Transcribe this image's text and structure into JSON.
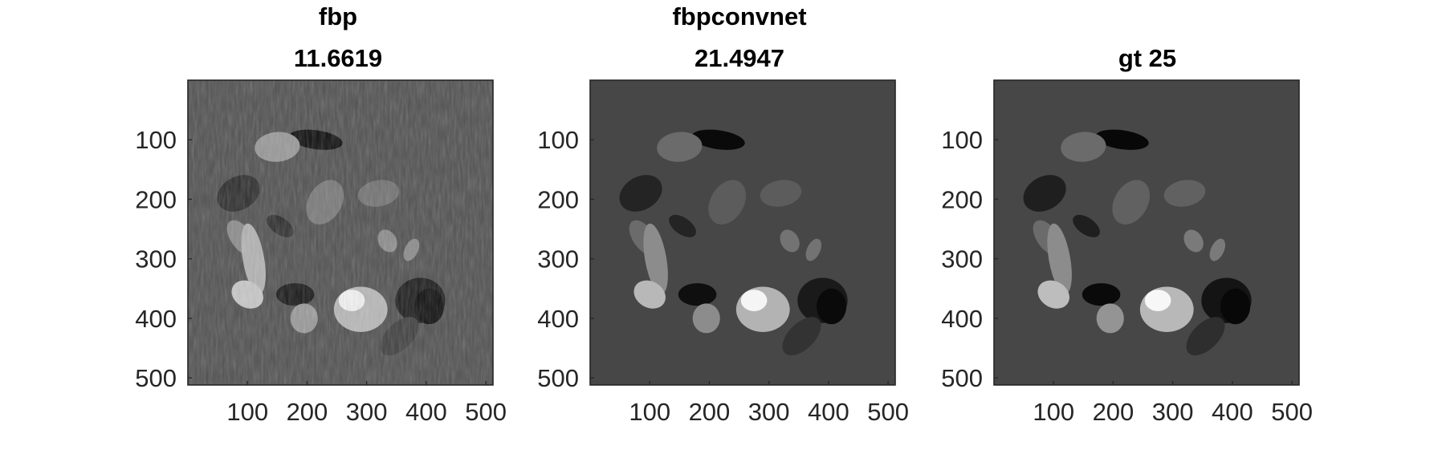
{
  "figure": {
    "background_color": "#ffffff",
    "axis_color": "#262626",
    "title_color": "#000000"
  },
  "chart_data": [
    {
      "type": "heatmap",
      "image_type": "grayscale reconstruction",
      "title": "fbp",
      "subtitle": "11.6619",
      "xlabel": "",
      "ylabel": "",
      "xlim": [
        0,
        512
      ],
      "ylim": [
        512,
        0
      ],
      "xticks": [
        100,
        200,
        300,
        400,
        500
      ],
      "yticks": [
        100,
        200,
        300,
        400,
        500
      ],
      "background_gray": 0.32,
      "noise": "streak artifacts",
      "ellipses": [
        {
          "cx": 215,
          "cy": 100,
          "rx": 45,
          "ry": 16,
          "angle": 8,
          "gray": 0.06
        },
        {
          "cx": 150,
          "cy": 112,
          "rx": 38,
          "ry": 25,
          "angle": -5,
          "gray": 0.6
        },
        {
          "cx": 85,
          "cy": 190,
          "rx": 38,
          "ry": 28,
          "angle": -30,
          "gray": 0.18
        },
        {
          "cx": 230,
          "cy": 205,
          "rx": 40,
          "ry": 28,
          "angle": -60,
          "gray": 0.48
        },
        {
          "cx": 320,
          "cy": 190,
          "rx": 35,
          "ry": 22,
          "angle": -10,
          "gray": 0.45
        },
        {
          "cx": 155,
          "cy": 245,
          "rx": 26,
          "ry": 14,
          "angle": 35,
          "gray": 0.18
        },
        {
          "cx": 90,
          "cy": 265,
          "rx": 34,
          "ry": 18,
          "angle": 55,
          "gray": 0.55
        },
        {
          "cx": 110,
          "cy": 300,
          "rx": 60,
          "ry": 18,
          "angle": 80,
          "gray": 0.7
        },
        {
          "cx": 335,
          "cy": 270,
          "rx": 20,
          "ry": 15,
          "angle": 60,
          "gray": 0.55
        },
        {
          "cx": 375,
          "cy": 285,
          "rx": 20,
          "ry": 11,
          "angle": -65,
          "gray": 0.55
        },
        {
          "cx": 100,
          "cy": 360,
          "rx": 28,
          "ry": 22,
          "angle": 30,
          "gray": 0.78
        },
        {
          "cx": 180,
          "cy": 360,
          "rx": 32,
          "ry": 19,
          "angle": 0,
          "gray": 0.1
        },
        {
          "cx": 290,
          "cy": 385,
          "rx": 45,
          "ry": 38,
          "angle": 0,
          "gray": 0.72
        },
        {
          "cx": 275,
          "cy": 370,
          "rx": 22,
          "ry": 18,
          "angle": 0,
          "gray": 0.95
        },
        {
          "cx": 195,
          "cy": 400,
          "rx": 23,
          "ry": 25,
          "angle": 0,
          "gray": 0.6
        },
        {
          "cx": 390,
          "cy": 370,
          "rx": 42,
          "ry": 38,
          "angle": 0,
          "gray": 0.12
        },
        {
          "cx": 405,
          "cy": 380,
          "rx": 25,
          "ry": 30,
          "angle": 0,
          "gray": 0.06
        },
        {
          "cx": 355,
          "cy": 430,
          "rx": 40,
          "ry": 22,
          "angle": -45,
          "gray": 0.25
        }
      ]
    },
    {
      "type": "heatmap",
      "image_type": "grayscale reconstruction",
      "title": "fbpconvnet",
      "subtitle": "21.4947",
      "xlabel": "",
      "ylabel": "",
      "xlim": [
        0,
        512
      ],
      "ylim": [
        512,
        0
      ],
      "xticks": [
        100,
        200,
        300,
        400,
        500
      ],
      "yticks": [
        100,
        200,
        300,
        400,
        500
      ],
      "background_gray": 0.28,
      "noise": "none",
      "ellipses": [
        {
          "cx": 215,
          "cy": 100,
          "rx": 45,
          "ry": 16,
          "angle": 8,
          "gray": 0.04
        },
        {
          "cx": 150,
          "cy": 112,
          "rx": 38,
          "ry": 25,
          "angle": -5,
          "gray": 0.42
        },
        {
          "cx": 85,
          "cy": 190,
          "rx": 38,
          "ry": 28,
          "angle": -30,
          "gray": 0.14
        },
        {
          "cx": 230,
          "cy": 205,
          "rx": 40,
          "ry": 28,
          "angle": -60,
          "gray": 0.36
        },
        {
          "cx": 320,
          "cy": 190,
          "rx": 35,
          "ry": 22,
          "angle": -10,
          "gray": 0.36
        },
        {
          "cx": 155,
          "cy": 245,
          "rx": 26,
          "ry": 14,
          "angle": 35,
          "gray": 0.14
        },
        {
          "cx": 90,
          "cy": 265,
          "rx": 34,
          "ry": 18,
          "angle": 55,
          "gray": 0.42
        },
        {
          "cx": 110,
          "cy": 300,
          "rx": 60,
          "ry": 18,
          "angle": 80,
          "gray": 0.55
        },
        {
          "cx": 335,
          "cy": 270,
          "rx": 20,
          "ry": 15,
          "angle": 60,
          "gray": 0.45
        },
        {
          "cx": 375,
          "cy": 285,
          "rx": 20,
          "ry": 11,
          "angle": -65,
          "gray": 0.45
        },
        {
          "cx": 100,
          "cy": 360,
          "rx": 28,
          "ry": 22,
          "angle": 30,
          "gray": 0.72
        },
        {
          "cx": 180,
          "cy": 360,
          "rx": 32,
          "ry": 19,
          "angle": 0,
          "gray": 0.06
        },
        {
          "cx": 290,
          "cy": 385,
          "rx": 45,
          "ry": 38,
          "angle": 0,
          "gray": 0.7
        },
        {
          "cx": 275,
          "cy": 370,
          "rx": 22,
          "ry": 18,
          "angle": 0,
          "gray": 0.96
        },
        {
          "cx": 195,
          "cy": 400,
          "rx": 23,
          "ry": 25,
          "angle": 0,
          "gray": 0.55
        },
        {
          "cx": 390,
          "cy": 370,
          "rx": 42,
          "ry": 38,
          "angle": 0,
          "gray": 0.1
        },
        {
          "cx": 405,
          "cy": 380,
          "rx": 25,
          "ry": 30,
          "angle": 0,
          "gray": 0.04
        },
        {
          "cx": 355,
          "cy": 430,
          "rx": 40,
          "ry": 22,
          "angle": -45,
          "gray": 0.2
        }
      ]
    },
    {
      "type": "heatmap",
      "image_type": "grayscale reconstruction",
      "title": "gt 25",
      "subtitle": "",
      "xlabel": "",
      "ylabel": "",
      "xlim": [
        0,
        512
      ],
      "ylim": [
        512,
        0
      ],
      "xticks": [
        100,
        200,
        300,
        400,
        500
      ],
      "yticks": [
        100,
        200,
        300,
        400,
        500
      ],
      "background_gray": 0.28,
      "noise": "none",
      "ellipses": [
        {
          "cx": 215,
          "cy": 100,
          "rx": 45,
          "ry": 16,
          "angle": 8,
          "gray": 0.03
        },
        {
          "cx": 150,
          "cy": 112,
          "rx": 38,
          "ry": 25,
          "angle": -5,
          "gray": 0.42
        },
        {
          "cx": 85,
          "cy": 190,
          "rx": 38,
          "ry": 28,
          "angle": -30,
          "gray": 0.12
        },
        {
          "cx": 230,
          "cy": 205,
          "rx": 40,
          "ry": 28,
          "angle": -60,
          "gray": 0.38
        },
        {
          "cx": 320,
          "cy": 190,
          "rx": 35,
          "ry": 22,
          "angle": -10,
          "gray": 0.38
        },
        {
          "cx": 155,
          "cy": 245,
          "rx": 26,
          "ry": 14,
          "angle": 35,
          "gray": 0.12
        },
        {
          "cx": 90,
          "cy": 265,
          "rx": 34,
          "ry": 18,
          "angle": 55,
          "gray": 0.42
        },
        {
          "cx": 110,
          "cy": 300,
          "rx": 60,
          "ry": 18,
          "angle": 80,
          "gray": 0.55
        },
        {
          "cx": 335,
          "cy": 270,
          "rx": 20,
          "ry": 15,
          "angle": 60,
          "gray": 0.48
        },
        {
          "cx": 375,
          "cy": 285,
          "rx": 20,
          "ry": 11,
          "angle": -65,
          "gray": 0.48
        },
        {
          "cx": 100,
          "cy": 360,
          "rx": 28,
          "ry": 22,
          "angle": 30,
          "gray": 0.74
        },
        {
          "cx": 180,
          "cy": 360,
          "rx": 32,
          "ry": 19,
          "angle": 0,
          "gray": 0.04
        },
        {
          "cx": 290,
          "cy": 385,
          "rx": 45,
          "ry": 38,
          "angle": 0,
          "gray": 0.72
        },
        {
          "cx": 275,
          "cy": 370,
          "rx": 22,
          "ry": 18,
          "angle": 0,
          "gray": 0.97
        },
        {
          "cx": 195,
          "cy": 400,
          "rx": 23,
          "ry": 25,
          "angle": 0,
          "gray": 0.58
        },
        {
          "cx": 390,
          "cy": 370,
          "rx": 42,
          "ry": 38,
          "angle": 0,
          "gray": 0.08
        },
        {
          "cx": 405,
          "cy": 380,
          "rx": 25,
          "ry": 30,
          "angle": 0,
          "gray": 0.03
        },
        {
          "cx": 355,
          "cy": 430,
          "rx": 40,
          "ry": 22,
          "angle": -45,
          "gray": 0.18
        }
      ]
    }
  ]
}
